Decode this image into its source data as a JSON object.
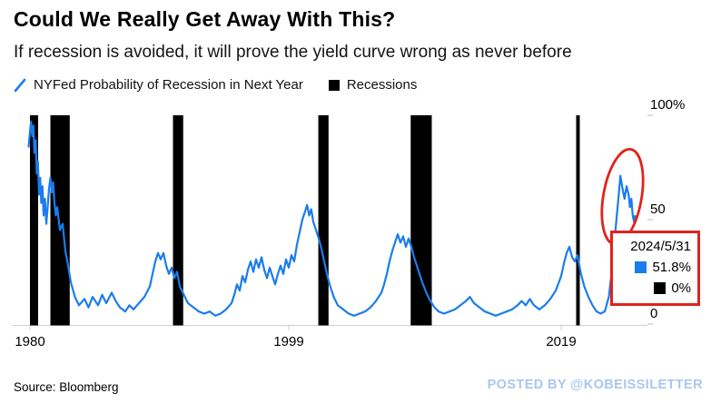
{
  "title": "Could We Really Get Away With This?",
  "subtitle": "If recession is avoided, it will prove the yield curve wrong as never before",
  "legend": [
    {
      "label": "NYFed Probability of Recession in Next Year",
      "type": "line",
      "color": "#1b7ced"
    },
    {
      "label": "Recessions",
      "type": "square",
      "color": "#000000"
    }
  ],
  "source": "Source: Bloomberg",
  "watermark": "POSTED BY @KOBEISSILETTER",
  "colors": {
    "line": "#1b7ced",
    "recession": "#000000",
    "annotation_red": "#e0231c",
    "watermark_blue": "#a9c7ef",
    "axis": "#000000",
    "baseline": "#cfcfcf"
  },
  "tooltip": {
    "date": "2024/5/31",
    "items": [
      {
        "label": "NYFed Probability of Recession in Next Year",
        "color": "#1b7ced",
        "value": "51.8%"
      },
      {
        "label": "Recessions",
        "color": "#000000",
        "value": "0%"
      }
    ]
  },
  "annotation": {
    "color": "#e0231c",
    "ellipse": {
      "x_year": 2023.5,
      "y_value": 61,
      "rx": 21,
      "ry": 53,
      "rotate": 10
    }
  },
  "chart_data": {
    "type": "line",
    "title": "Could We Really Get Away With This?",
    "subtitle": "If recession is avoided, it will prove the yield curve wrong as never before",
    "xlabel": "",
    "ylabel": "NYFed Probability of Recession in Next Year (%)",
    "xlim": [
      1979.8,
      2024.6
    ],
    "ylim": [
      0,
      100
    ],
    "grid": false,
    "legend_position": "top-left",
    "x_ticks": [
      1980,
      1999,
      2019
    ],
    "y_ticks": [
      {
        "value": 100,
        "label": "100%"
      },
      {
        "value": 50,
        "label": "50"
      },
      {
        "value": 0,
        "label": "0"
      }
    ],
    "recession_color": "#000000",
    "recessions": [
      [
        1980.0,
        1980.6
      ],
      [
        1981.5,
        1982.92
      ],
      [
        1990.5,
        1991.25
      ],
      [
        2001.17,
        2001.92
      ],
      [
        2007.95,
        2009.5
      ],
      [
        2020.1,
        2020.35
      ]
    ],
    "series": [
      {
        "name": "NYFed Probability of Recession in Next Year",
        "color": "#1b7ced",
        "last_point": {
          "date": "2024/5/31",
          "value": 51.8
        },
        "points": [
          [
            1979.9,
            85
          ],
          [
            1980.0,
            92
          ],
          [
            1980.08,
            97
          ],
          [
            1980.17,
            90
          ],
          [
            1980.25,
            95
          ],
          [
            1980.33,
            82
          ],
          [
            1980.42,
            88
          ],
          [
            1980.5,
            72
          ],
          [
            1980.58,
            78
          ],
          [
            1980.67,
            62
          ],
          [
            1980.75,
            70
          ],
          [
            1980.83,
            58
          ],
          [
            1980.92,
            66
          ],
          [
            1981.0,
            52
          ],
          [
            1981.1,
            60
          ],
          [
            1981.2,
            48
          ],
          [
            1981.3,
            56
          ],
          [
            1981.4,
            65
          ],
          [
            1981.5,
            70
          ],
          [
            1981.6,
            63
          ],
          [
            1981.7,
            68
          ],
          [
            1981.8,
            58
          ],
          [
            1981.9,
            52
          ],
          [
            1982.0,
            56
          ],
          [
            1982.2,
            45
          ],
          [
            1982.4,
            48
          ],
          [
            1982.6,
            35
          ],
          [
            1982.8,
            28
          ],
          [
            1983.0,
            20
          ],
          [
            1983.3,
            13
          ],
          [
            1983.6,
            9
          ],
          [
            1984.0,
            12
          ],
          [
            1984.3,
            8
          ],
          [
            1984.6,
            13
          ],
          [
            1985.0,
            9
          ],
          [
            1985.3,
            14
          ],
          [
            1985.6,
            10
          ],
          [
            1986.0,
            15
          ],
          [
            1986.3,
            11
          ],
          [
            1986.6,
            8
          ],
          [
            1987.0,
            6
          ],
          [
            1987.3,
            9
          ],
          [
            1987.6,
            7
          ],
          [
            1988.0,
            10
          ],
          [
            1988.4,
            13
          ],
          [
            1988.8,
            18
          ],
          [
            1989.0,
            24
          ],
          [
            1989.2,
            30
          ],
          [
            1989.4,
            34
          ],
          [
            1989.6,
            31
          ],
          [
            1989.8,
            34
          ],
          [
            1990.0,
            28
          ],
          [
            1990.2,
            24
          ],
          [
            1990.4,
            27
          ],
          [
            1990.6,
            22
          ],
          [
            1990.8,
            25
          ],
          [
            1991.0,
            18
          ],
          [
            1991.3,
            14
          ],
          [
            1991.6,
            10
          ],
          [
            1992.0,
            8
          ],
          [
            1992.4,
            6
          ],
          [
            1992.8,
            5
          ],
          [
            1993.2,
            6
          ],
          [
            1993.6,
            4
          ],
          [
            1994.0,
            5
          ],
          [
            1994.4,
            7
          ],
          [
            1994.8,
            10
          ],
          [
            1995.0,
            14
          ],
          [
            1995.2,
            19
          ],
          [
            1995.4,
            16
          ],
          [
            1995.6,
            23
          ],
          [
            1995.8,
            20
          ],
          [
            1996.0,
            26
          ],
          [
            1996.2,
            30
          ],
          [
            1996.4,
            25
          ],
          [
            1996.6,
            31
          ],
          [
            1996.8,
            27
          ],
          [
            1997.0,
            32
          ],
          [
            1997.2,
            26
          ],
          [
            1997.4,
            22
          ],
          [
            1997.6,
            27
          ],
          [
            1997.8,
            23
          ],
          [
            1998.0,
            19
          ],
          [
            1998.2,
            24
          ],
          [
            1998.4,
            28
          ],
          [
            1998.6,
            24
          ],
          [
            1998.8,
            31
          ],
          [
            1999.0,
            27
          ],
          [
            1999.2,
            33
          ],
          [
            1999.4,
            30
          ],
          [
            1999.6,
            38
          ],
          [
            1999.8,
            44
          ],
          [
            2000.0,
            50
          ],
          [
            2000.2,
            54
          ],
          [
            2000.35,
            57
          ],
          [
            2000.5,
            52
          ],
          [
            2000.65,
            55
          ],
          [
            2000.8,
            49
          ],
          [
            2001.0,
            45
          ],
          [
            2001.2,
            41
          ],
          [
            2001.4,
            36
          ],
          [
            2001.6,
            30
          ],
          [
            2001.8,
            24
          ],
          [
            2002.0,
            19
          ],
          [
            2002.3,
            13
          ],
          [
            2002.6,
            9
          ],
          [
            2003.0,
            7
          ],
          [
            2003.4,
            5
          ],
          [
            2003.8,
            4
          ],
          [
            2004.2,
            5
          ],
          [
            2004.6,
            6
          ],
          [
            2005.0,
            8
          ],
          [
            2005.4,
            11
          ],
          [
            2005.8,
            15
          ],
          [
            2006.0,
            19
          ],
          [
            2006.2,
            24
          ],
          [
            2006.4,
            30
          ],
          [
            2006.6,
            35
          ],
          [
            2006.8,
            39
          ],
          [
            2007.0,
            43
          ],
          [
            2007.2,
            39
          ],
          [
            2007.4,
            42
          ],
          [
            2007.6,
            37
          ],
          [
            2007.8,
            41
          ],
          [
            2008.0,
            37
          ],
          [
            2008.2,
            32
          ],
          [
            2008.5,
            26
          ],
          [
            2008.8,
            20
          ],
          [
            2009.1,
            15
          ],
          [
            2009.4,
            11
          ],
          [
            2009.7,
            8
          ],
          [
            2010.0,
            6
          ],
          [
            2010.4,
            5
          ],
          [
            2010.8,
            6
          ],
          [
            2011.2,
            7
          ],
          [
            2011.6,
            9
          ],
          [
            2012.0,
            11
          ],
          [
            2012.3,
            13
          ],
          [
            2012.6,
            10
          ],
          [
            2013.0,
            8
          ],
          [
            2013.4,
            6
          ],
          [
            2013.8,
            5
          ],
          [
            2014.2,
            4
          ],
          [
            2014.6,
            5
          ],
          [
            2015.0,
            6
          ],
          [
            2015.4,
            7
          ],
          [
            2015.8,
            9
          ],
          [
            2016.1,
            11
          ],
          [
            2016.4,
            9
          ],
          [
            2016.7,
            12
          ],
          [
            2017.0,
            9
          ],
          [
            2017.4,
            7
          ],
          [
            2017.8,
            9
          ],
          [
            2018.2,
            12
          ],
          [
            2018.6,
            16
          ],
          [
            2019.0,
            23
          ],
          [
            2019.2,
            29
          ],
          [
            2019.4,
            34
          ],
          [
            2019.6,
            37
          ],
          [
            2019.8,
            32
          ],
          [
            2020.0,
            30
          ],
          [
            2020.2,
            33
          ],
          [
            2020.45,
            24
          ],
          [
            2020.7,
            18
          ],
          [
            2021.0,
            13
          ],
          [
            2021.3,
            9
          ],
          [
            2021.6,
            6
          ],
          [
            2021.9,
            5
          ],
          [
            2022.2,
            6
          ],
          [
            2022.5,
            13
          ],
          [
            2022.8,
            30
          ],
          [
            2023.0,
            46
          ],
          [
            2023.2,
            60
          ],
          [
            2023.35,
            71
          ],
          [
            2023.5,
            65
          ],
          [
            2023.65,
            60
          ],
          [
            2023.8,
            66
          ],
          [
            2023.95,
            62
          ],
          [
            2024.05,
            56
          ],
          [
            2024.15,
            60
          ],
          [
            2024.25,
            52
          ],
          [
            2024.35,
            49
          ],
          [
            2024.42,
            51.8
          ]
        ]
      }
    ]
  }
}
